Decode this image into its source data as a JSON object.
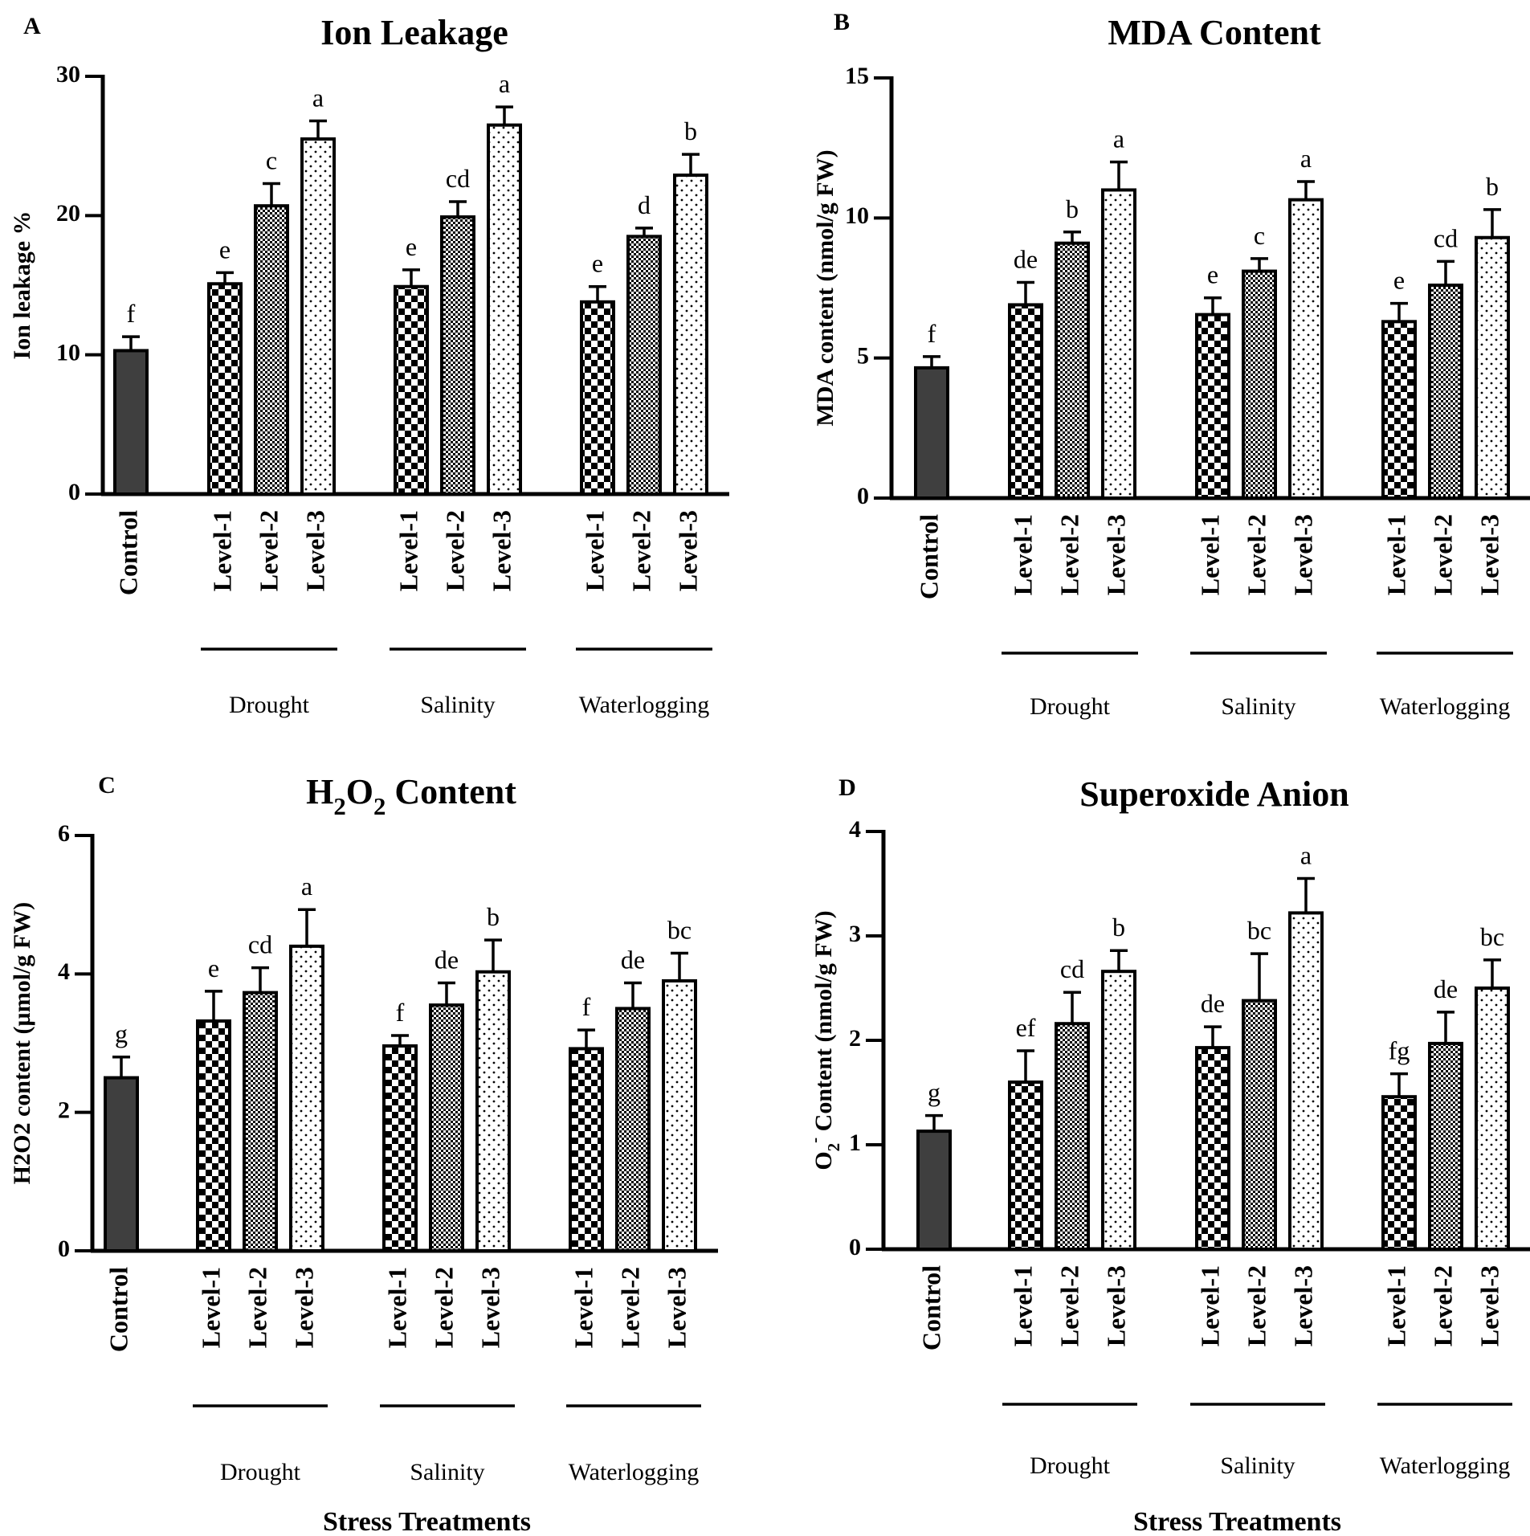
{
  "patterns": {
    "level1_pattern": "checkerboard",
    "level2_pattern": "fine-dots",
    "level3_pattern": "sparse-dots"
  },
  "colors": {
    "control_fill": "#3f3f3f",
    "bar_stroke": "#000000",
    "background": "#ffffff"
  },
  "chart_data": [
    {
      "id": "A",
      "type": "bar",
      "panel_letter": "A",
      "title": "Ion Leakage",
      "title_parts": [
        {
          "t": "Ion Leakage"
        }
      ],
      "ylabel": "Ion leakage %",
      "ylabel_parts": [
        {
          "t": "Ion leakage %"
        }
      ],
      "xlabel": "",
      "ylim": [
        0,
        30
      ],
      "yticks": [
        0,
        10,
        20,
        30
      ],
      "categories": [
        "Control",
        "Level-1",
        "Level-2",
        "Level-3",
        "Level-1",
        "Level-2",
        "Level-3",
        "Level-1",
        "Level-2",
        "Level-3"
      ],
      "groups": [
        "Drought",
        "Salinity",
        "Waterlogging"
      ],
      "values": [
        10.3,
        15.1,
        20.7,
        25.5,
        14.9,
        19.9,
        26.5,
        13.8,
        18.5,
        22.9
      ],
      "errors": [
        1.0,
        0.8,
        1.6,
        1.3,
        1.2,
        1.1,
        1.3,
        1.1,
        0.6,
        1.5
      ],
      "letters": [
        "f",
        "e",
        "c",
        "a",
        "e",
        "cd",
        "a",
        "e",
        "d",
        "b"
      ]
    },
    {
      "id": "B",
      "type": "bar",
      "panel_letter": "B",
      "title": "MDA Content",
      "title_parts": [
        {
          "t": "MDA Content"
        }
      ],
      "ylabel": "MDA content (nmol/g FW)",
      "ylabel_parts": [
        {
          "t": "MDA content (nmol/g FW)"
        }
      ],
      "xlabel": "",
      "ylim": [
        0,
        15
      ],
      "yticks": [
        0,
        5,
        10,
        15
      ],
      "categories": [
        "Control",
        "Level-1",
        "Level-2",
        "Level-3",
        "Level-1",
        "Level-2",
        "Level-3",
        "Level-1",
        "Level-2",
        "Level-3"
      ],
      "groups": [
        "Drought",
        "Salinity",
        "Waterlogging"
      ],
      "values": [
        4.65,
        6.9,
        9.1,
        11.0,
        6.55,
        8.1,
        10.65,
        6.3,
        7.6,
        9.3
      ],
      "errors": [
        0.4,
        0.8,
        0.4,
        1.0,
        0.6,
        0.45,
        0.65,
        0.65,
        0.85,
        1.0
      ],
      "letters": [
        "f",
        "de",
        "b",
        "a",
        "e",
        "c",
        "a",
        "e",
        "cd",
        "b"
      ]
    },
    {
      "id": "C",
      "type": "bar",
      "panel_letter": "C",
      "title": "H2O2 Content",
      "title_parts": [
        {
          "t": "H"
        },
        {
          "t": "2",
          "sub": true
        },
        {
          "t": "O"
        },
        {
          "t": "2",
          "sub": true
        },
        {
          "t": " Content"
        }
      ],
      "ylabel": "H2O2 content (µmol/g FW)",
      "ylabel_parts": [
        {
          "t": "H2O2 content (µmol/g FW)"
        }
      ],
      "xlabel": "Stress Treatments",
      "ylim": [
        0,
        6
      ],
      "yticks": [
        0,
        2,
        4,
        6
      ],
      "categories": [
        "Control",
        "Level-1",
        "Level-2",
        "Level-3",
        "Level-1",
        "Level-2",
        "Level-3",
        "Level-1",
        "Level-2",
        "Level-3"
      ],
      "groups": [
        "Drought",
        "Salinity",
        "Waterlogging"
      ],
      "values": [
        2.5,
        3.32,
        3.73,
        4.4,
        2.96,
        3.55,
        4.03,
        2.92,
        3.5,
        3.9
      ],
      "errors": [
        0.3,
        0.43,
        0.36,
        0.53,
        0.15,
        0.32,
        0.46,
        0.27,
        0.37,
        0.4
      ],
      "letters": [
        "g",
        "e",
        "cd",
        "a",
        "f",
        "de",
        "b",
        "f",
        "de",
        "bc"
      ]
    },
    {
      "id": "D",
      "type": "bar",
      "panel_letter": "D",
      "title": "Superoxide Anion",
      "title_parts": [
        {
          "t": "Superoxide Anion"
        }
      ],
      "ylabel": "O2- Content (nmol/g FW)",
      "ylabel_parts": [
        {
          "t": "O"
        },
        {
          "t": "2",
          "sub": true
        },
        {
          "t": "-",
          "sup": true
        },
        {
          "t": " Content (nmol/g FW)"
        }
      ],
      "xlabel": "Stress Treatments",
      "ylim": [
        0,
        4
      ],
      "yticks": [
        0,
        1,
        2,
        3,
        4
      ],
      "categories": [
        "Control",
        "Level-1",
        "Level-2",
        "Level-3",
        "Level-1",
        "Level-2",
        "Level-3",
        "Level-1",
        "Level-2",
        "Level-3"
      ],
      "groups": [
        "Drought",
        "Salinity",
        "Waterlogging"
      ],
      "values": [
        1.13,
        1.6,
        2.16,
        2.66,
        1.93,
        2.38,
        3.22,
        1.46,
        1.97,
        2.5
      ],
      "errors": [
        0.15,
        0.3,
        0.3,
        0.2,
        0.2,
        0.45,
        0.33,
        0.22,
        0.3,
        0.27
      ],
      "letters": [
        "g",
        "ef",
        "cd",
        "b",
        "de",
        "bc",
        "a",
        "fg",
        "de",
        "bc"
      ]
    }
  ]
}
